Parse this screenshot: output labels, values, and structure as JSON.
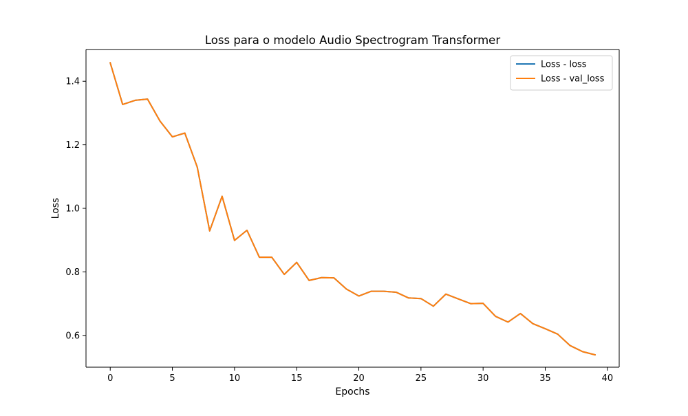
{
  "chart_data": {
    "type": "line",
    "title": "Loss para o modelo Audio Spectrogram Transformer",
    "xlabel": "Epochs",
    "ylabel": "Loss",
    "xlim": [
      -1.95,
      40.95
    ],
    "ylim": [
      0.5,
      1.5
    ],
    "xticks": [
      0,
      5,
      10,
      15,
      20,
      25,
      30,
      35,
      40
    ],
    "xtick_labels": [
      "0",
      "5",
      "10",
      "15",
      "20",
      "25",
      "30",
      "35",
      "40"
    ],
    "yticks": [
      0.6,
      0.8,
      1.0,
      1.2,
      1.4
    ],
    "ytick_labels": [
      "0.6",
      "0.8",
      "1.0",
      "1.2",
      "1.4"
    ],
    "grid": false,
    "legend_position": "top-right",
    "x": [
      0,
      1,
      2,
      3,
      4,
      5,
      6,
      7,
      8,
      9,
      10,
      11,
      12,
      13,
      14,
      15,
      16,
      17,
      18,
      19,
      20,
      21,
      22,
      23,
      24,
      25,
      26,
      27,
      28,
      29,
      30,
      31,
      32,
      33,
      34,
      35,
      36,
      37,
      38,
      39
    ],
    "series": [
      {
        "name": "Loss - loss",
        "color": "#1f77b4",
        "values": [
          1.458,
          1.327,
          1.34,
          1.344,
          1.275,
          1.225,
          1.237,
          1.13,
          0.929,
          1.038,
          0.899,
          0.931,
          0.846,
          0.846,
          0.792,
          0.83,
          0.773,
          0.782,
          0.781,
          0.746,
          0.724,
          0.739,
          0.739,
          0.736,
          0.718,
          0.716,
          0.692,
          0.73,
          0.715,
          0.7,
          0.701,
          0.66,
          0.642,
          0.669,
          0.637,
          0.621,
          0.604,
          0.568,
          0.549,
          0.539
        ]
      },
      {
        "name": "Loss - val_loss",
        "color": "#ff7f0e",
        "values": [
          1.458,
          1.327,
          1.34,
          1.344,
          1.275,
          1.225,
          1.237,
          1.13,
          0.929,
          1.038,
          0.899,
          0.931,
          0.846,
          0.846,
          0.792,
          0.83,
          0.773,
          0.782,
          0.781,
          0.746,
          0.724,
          0.739,
          0.739,
          0.736,
          0.718,
          0.716,
          0.692,
          0.73,
          0.715,
          0.7,
          0.701,
          0.66,
          0.642,
          0.669,
          0.637,
          0.621,
          0.604,
          0.568,
          0.549,
          0.539
        ]
      }
    ]
  }
}
